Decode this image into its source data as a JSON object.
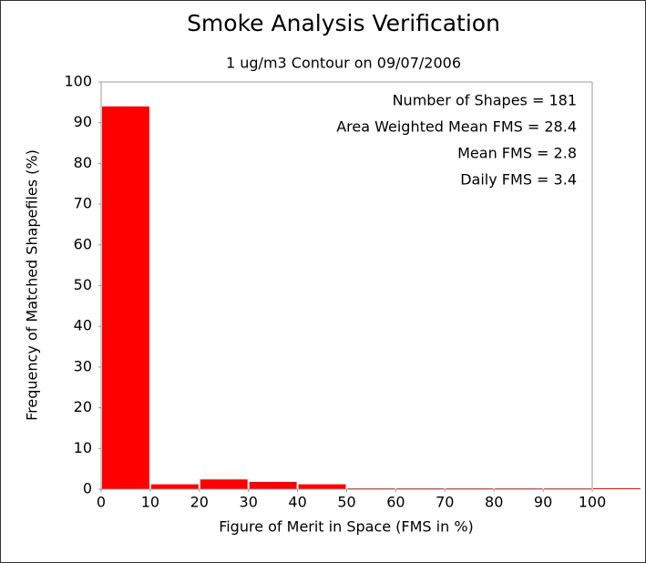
{
  "chart_data": {
    "type": "histogram",
    "title": "Smoke Analysis Verification",
    "subtitle": "1 ug/m3 Contour on 09/07/2006",
    "x_label": "Figure of Merit in Space (FMS in %)",
    "y_label": "Frequency of Matched Shapefiles (%)",
    "bins": [
      0,
      10,
      20,
      30,
      40,
      50,
      60,
      70,
      80,
      90,
      100,
      110
    ],
    "counts": [
      94,
      1.2,
      2.4,
      1.8,
      1.2,
      0,
      0,
      0,
      0,
      0,
      0
    ],
    "color": "#ff0000",
    "xlim": [
      0,
      100
    ],
    "xticks": [
      0,
      10,
      20,
      30,
      40,
      50,
      60,
      70,
      80,
      90,
      100
    ],
    "ylim": [
      0,
      100
    ],
    "yticks": [
      0,
      10,
      20,
      30,
      40,
      50,
      60,
      70,
      80,
      90,
      100
    ],
    "annotations": [
      "Number of Shapes = 181",
      "Area Weighted Mean FMS = 28.4",
      "Mean FMS = 2.8",
      "Daily FMS = 3.4"
    ]
  }
}
